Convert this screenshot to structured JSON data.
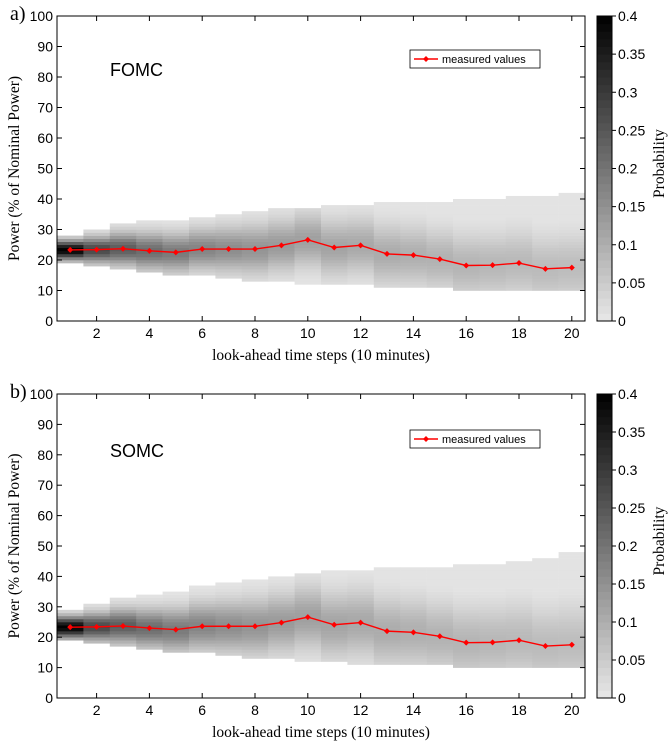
{
  "chart_data": [
    {
      "panel_label": "a)",
      "type": "heatmap",
      "annotation": "FOMC",
      "xlabel": "look-ahead time steps (10 minutes)",
      "ylabel": "Power (% of Nominal Power)",
      "colorbar_label": "Probability",
      "xlim": [
        0.5,
        20.5
      ],
      "ylim": [
        0,
        100
      ],
      "xticks": [
        2,
        4,
        6,
        8,
        10,
        12,
        14,
        16,
        18,
        20
      ],
      "yticks": [
        0,
        10,
        20,
        30,
        40,
        50,
        60,
        70,
        80,
        90,
        100
      ],
      "colorbar_ticks": [
        0,
        0.05,
        0.1,
        0.15,
        0.2,
        0.25,
        0.3,
        0.35,
        0.4
      ],
      "colorbar_range": [
        0,
        0.4
      ],
      "colormap": "gray-reversed",
      "grid": false,
      "legend_position": "top-right",
      "heatmap_lower_bound": [
        19,
        18,
        17,
        16,
        15,
        15,
        14,
        13,
        13,
        12,
        12,
        12,
        11,
        11,
        11,
        10,
        10,
        10,
        10,
        10
      ],
      "heatmap_upper_bound": [
        28,
        30,
        32,
        33,
        33,
        34,
        35,
        36,
        37,
        37,
        38,
        38,
        39,
        39,
        39,
        40,
        40,
        41,
        41,
        42
      ],
      "peak_probability_step1": 0.4,
      "series": [
        {
          "name": "measured values",
          "color": "#ff0000",
          "marker": "diamond",
          "x": [
            1,
            2,
            3,
            4,
            5,
            6,
            7,
            8,
            9,
            10,
            11,
            12,
            13,
            14,
            15,
            16,
            17,
            18,
            19,
            20
          ],
          "values": [
            23.3,
            23.4,
            23.7,
            23.0,
            22.5,
            23.6,
            23.6,
            23.6,
            24.8,
            26.6,
            24.1,
            24.8,
            22.0,
            21.6,
            20.3,
            18.2,
            18.3,
            19.0,
            17.1,
            17.5
          ]
        }
      ]
    },
    {
      "panel_label": "b)",
      "type": "heatmap",
      "annotation": "SOMC",
      "xlabel": "look-ahead time steps (10 minutes)",
      "ylabel": "Power (% of Nominal Power)",
      "colorbar_label": "Probability",
      "xlim": [
        0.5,
        20.5
      ],
      "ylim": [
        0,
        100
      ],
      "xticks": [
        2,
        4,
        6,
        8,
        10,
        12,
        14,
        16,
        18,
        20
      ],
      "yticks": [
        0,
        10,
        20,
        30,
        40,
        50,
        60,
        70,
        80,
        90,
        100
      ],
      "colorbar_ticks": [
        0,
        0.05,
        0.1,
        0.15,
        0.2,
        0.25,
        0.3,
        0.35,
        0.4
      ],
      "colorbar_range": [
        0,
        0.4
      ],
      "colormap": "gray-reversed",
      "grid": false,
      "legend_position": "top-right",
      "heatmap_lower_bound": [
        19,
        18,
        17,
        16,
        15,
        15,
        14,
        13,
        13,
        12,
        12,
        11,
        11,
        11,
        11,
        10,
        10,
        10,
        10,
        10
      ],
      "heatmap_upper_bound": [
        29,
        31,
        33,
        34,
        35,
        37,
        38,
        39,
        40,
        41,
        42,
        42,
        43,
        43,
        43,
        44,
        44,
        45,
        46,
        48
      ],
      "peak_probability_step1": 0.4,
      "series": [
        {
          "name": "measured values",
          "color": "#ff0000",
          "marker": "diamond",
          "x": [
            1,
            2,
            3,
            4,
            5,
            6,
            7,
            8,
            9,
            10,
            11,
            12,
            13,
            14,
            15,
            16,
            17,
            18,
            19,
            20
          ],
          "values": [
            23.3,
            23.4,
            23.7,
            23.0,
            22.5,
            23.6,
            23.6,
            23.6,
            24.8,
            26.6,
            24.1,
            24.8,
            22.0,
            21.6,
            20.3,
            18.2,
            18.3,
            19.0,
            17.1,
            17.5
          ]
        }
      ]
    }
  ]
}
